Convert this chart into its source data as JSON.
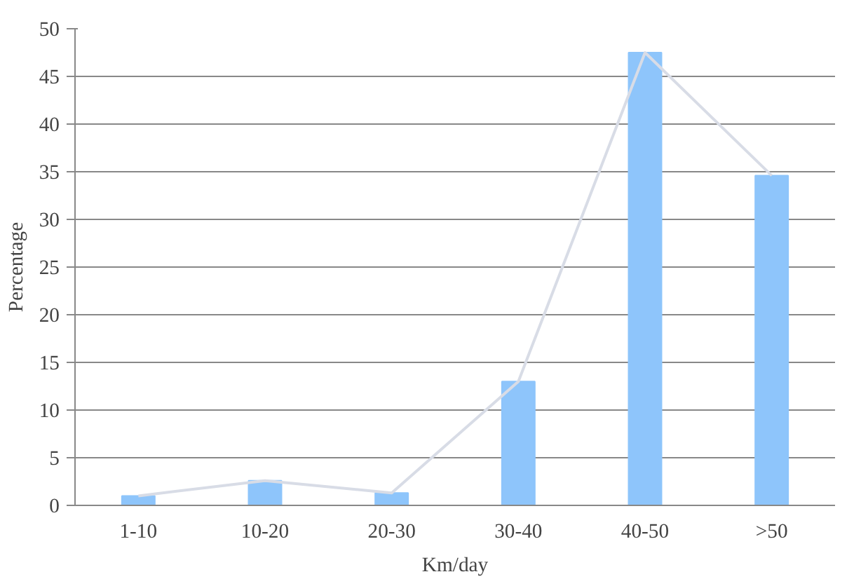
{
  "chart_data": {
    "type": "bar",
    "xlabel": "Km/day",
    "ylabel": "Percentage",
    "categories": [
      "1-10",
      "10-20",
      "20-30",
      "30-40",
      "40-50",
      ">50"
    ],
    "series": [
      {
        "color": "#8ec5fb",
        "values": [
          1,
          2.6,
          1.3,
          13,
          47.5,
          34.6
        ]
      },
      {
        "type": "line",
        "color": "#d8dce6",
        "values": [
          1,
          2.6,
          1.3,
          13,
          47.5,
          34.6
        ]
      }
    ],
    "ylim": [
      0,
      50
    ],
    "yticks": [
      0,
      5,
      10,
      15,
      20,
      25,
      30,
      35,
      40,
      45,
      50
    ],
    "grid": "y"
  }
}
